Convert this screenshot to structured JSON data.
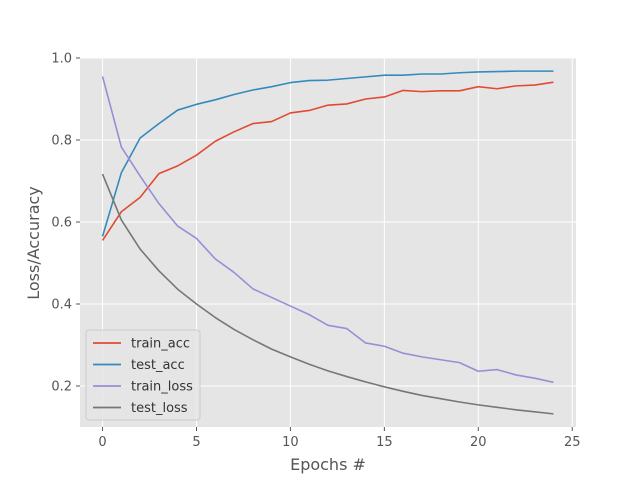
{
  "chart_data": {
    "type": "line",
    "title": "",
    "xlabel": "Epochs #",
    "ylabel": "Loss/Accuracy",
    "xlim": [
      -1.2,
      25.2
    ],
    "ylim": [
      0.1,
      1.0
    ],
    "x_ticks": [
      0,
      5,
      10,
      15,
      20,
      25
    ],
    "x_tick_labels": [
      "0",
      "5",
      "10",
      "15",
      "20",
      "25"
    ],
    "y_ticks": [
      0.2,
      0.4,
      0.6,
      0.8,
      1.0
    ],
    "y_tick_labels": [
      "0.2",
      "0.4",
      "0.6",
      "0.8",
      "1.0"
    ],
    "grid": true,
    "style": "ggplot",
    "legend_position": "lower-left",
    "x": [
      0,
      1,
      2,
      3,
      4,
      5,
      6,
      7,
      8,
      9,
      10,
      11,
      12,
      13,
      14,
      15,
      16,
      17,
      18,
      19,
      20,
      21,
      22,
      23,
      24
    ],
    "series": [
      {
        "name": "train_acc",
        "color": "#E24A33",
        "values": [
          0.555,
          0.625,
          0.66,
          0.718,
          0.737,
          0.763,
          0.797,
          0.82,
          0.84,
          0.845,
          0.866,
          0.872,
          0.885,
          0.888,
          0.9,
          0.905,
          0.921,
          0.918,
          0.92,
          0.92,
          0.93,
          0.925,
          0.932,
          0.934,
          0.941
        ]
      },
      {
        "name": "test_acc",
        "color": "#348ABD",
        "values": [
          0.565,
          0.72,
          0.805,
          0.84,
          0.873,
          0.887,
          0.898,
          0.911,
          0.922,
          0.93,
          0.94,
          0.945,
          0.946,
          0.95,
          0.954,
          0.958,
          0.958,
          0.961,
          0.961,
          0.964,
          0.966,
          0.967,
          0.968,
          0.968,
          0.968
        ]
      },
      {
        "name": "train_loss",
        "color": "#988ED5",
        "values": [
          0.955,
          0.783,
          0.712,
          0.645,
          0.59,
          0.56,
          0.51,
          0.477,
          0.437,
          0.416,
          0.395,
          0.374,
          0.348,
          0.34,
          0.305,
          0.297,
          0.28,
          0.271,
          0.264,
          0.257,
          0.236,
          0.24,
          0.227,
          0.219,
          0.209
        ]
      },
      {
        "name": "test_loss",
        "color": "#777777",
        "values": [
          0.717,
          0.605,
          0.534,
          0.481,
          0.436,
          0.4,
          0.367,
          0.338,
          0.313,
          0.29,
          0.271,
          0.253,
          0.237,
          0.223,
          0.21,
          0.198,
          0.187,
          0.177,
          0.169,
          0.161,
          0.154,
          0.148,
          0.142,
          0.137,
          0.132
        ]
      }
    ]
  }
}
